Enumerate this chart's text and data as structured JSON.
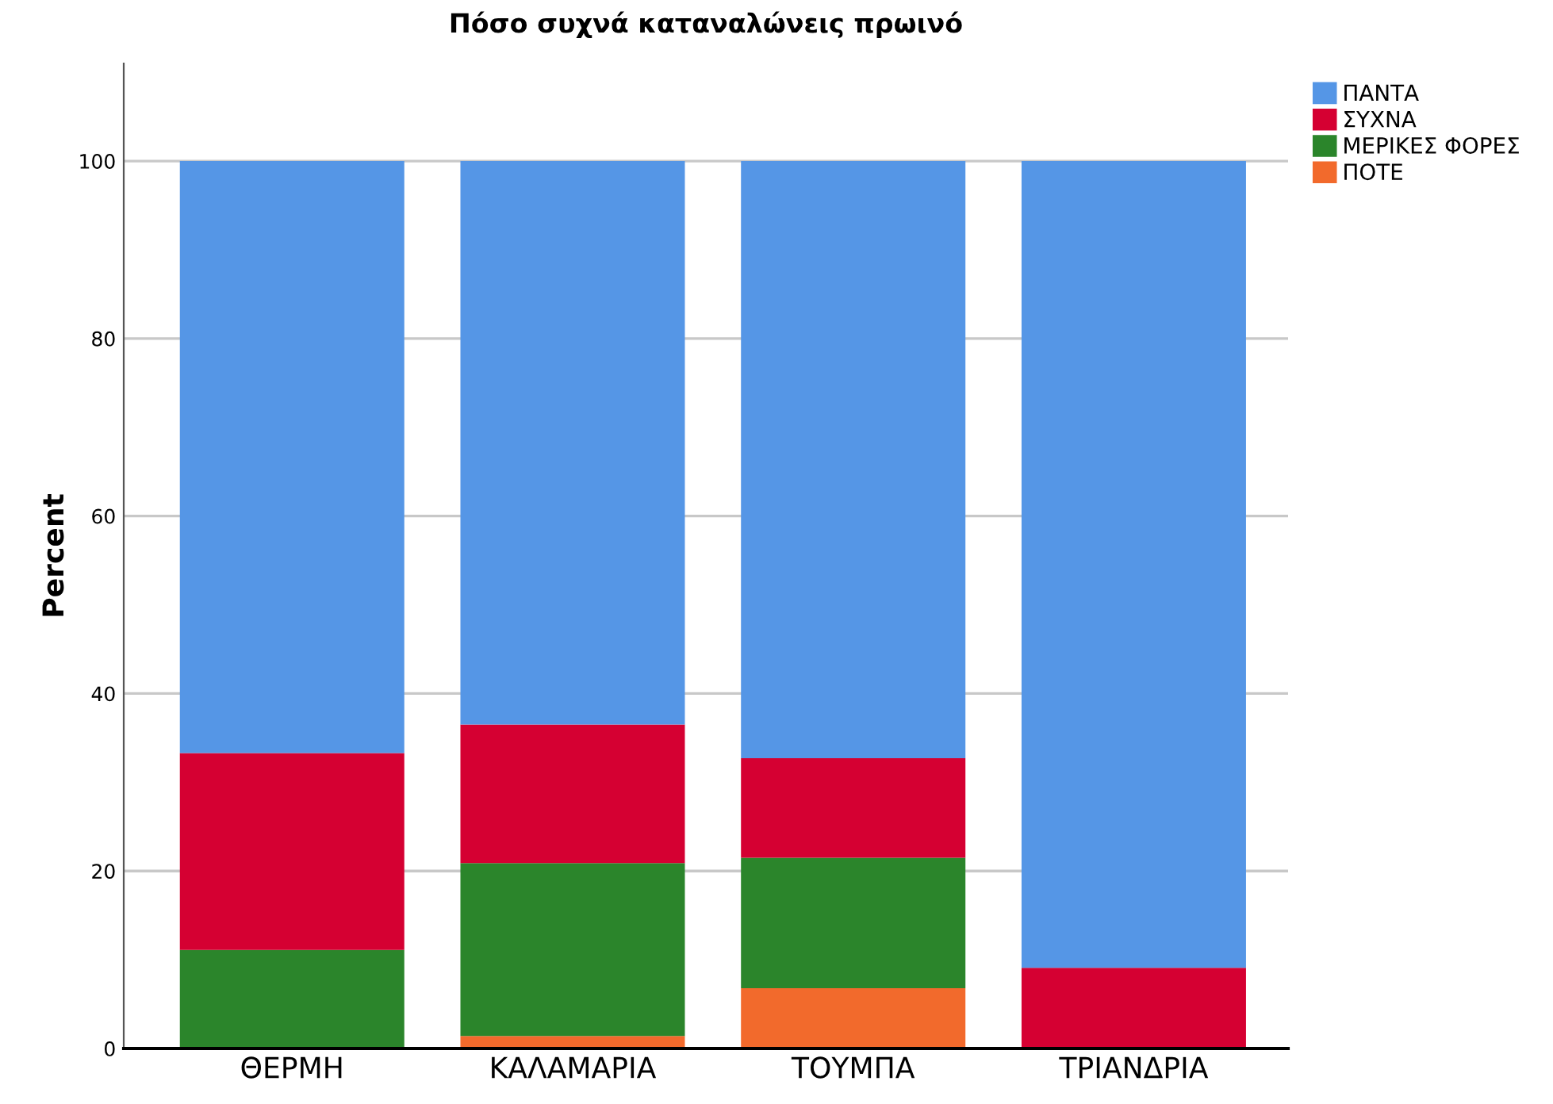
{
  "chart_data": {
    "type": "bar",
    "title": "Πόσο συχνά καταναλώνεις πρωινό",
    "ylabel": "Percent",
    "categories": [
      "ΘΕΡΜΗ",
      "ΚΑΛΑΜΑΡΙΑ",
      "ΤΟΥΜΠΑ",
      "ΤΡΙΑΝΔΡΙΑ"
    ],
    "stacked": true,
    "series": [
      {
        "name": "ΠΟΤΕ",
        "color": "#f26a2c",
        "values": [
          0,
          1.4,
          6.8,
          0
        ]
      },
      {
        "name": "ΜΕΡΙΚΕΣ ΦΟΡΕΣ",
        "color": "#2b852b",
        "values": [
          11.1,
          19.5,
          14.7,
          0
        ]
      },
      {
        "name": "ΣΥΧΝΑ",
        "color": "#d50032",
        "values": [
          22.2,
          15.6,
          11.2,
          9.1
        ]
      },
      {
        "name": "ΠΑΝΤΑ",
        "color": "#5596e6",
        "values": [
          66.7,
          63.5,
          67.3,
          90.9
        ]
      }
    ],
    "ylim": [
      0,
      111
    ],
    "yticks": [
      0,
      20,
      40,
      60,
      80,
      100
    ],
    "grid": "y",
    "legend": "top right"
  }
}
